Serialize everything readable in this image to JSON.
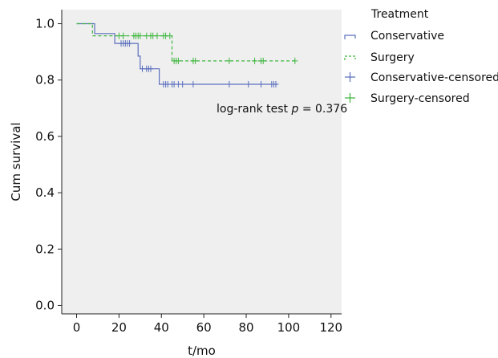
{
  "chart_data": {
    "type": "line",
    "chart_style": "kaplan-meier step survival plot",
    "xlabel": "t/mo",
    "ylabel": "Cum survival",
    "xlim": [
      -7,
      125
    ],
    "ylim": [
      -0.03,
      1.05
    ],
    "x_ticks": [
      0,
      20,
      40,
      60,
      80,
      100,
      120
    ],
    "y_ticks": [
      0.0,
      0.2,
      0.4,
      0.6,
      0.8,
      1.0
    ],
    "y_tick_labels": [
      "0.0",
      "0.2",
      "0.4",
      "0.6",
      "0.8",
      "1.0"
    ],
    "grid": false,
    "plot_background": "#efefef",
    "legend": {
      "title": "Treatment",
      "placement": "outside-right",
      "entries": [
        "Conservative",
        "Surgery",
        "Conservative-censored",
        "Surgery-censored"
      ]
    },
    "annotation": {
      "prefix": "log-rank test ",
      "symbol": "p",
      "suffix": " = 0.376",
      "x": 66,
      "y": 0.685
    },
    "series": [
      {
        "name": "Conservative",
        "color": "#5b6fbd",
        "style": "solid",
        "steps": [
          [
            0,
            1.0
          ],
          [
            8.5,
            1.0
          ],
          [
            8.5,
            0.965
          ],
          [
            18,
            0.965
          ],
          [
            18,
            0.93
          ],
          [
            29,
            0.93
          ],
          [
            29,
            0.885
          ],
          [
            30,
            0.885
          ],
          [
            30,
            0.84
          ],
          [
            39,
            0.84
          ],
          [
            39,
            0.785
          ],
          [
            95,
            0.785
          ]
        ]
      },
      {
        "name": "Surgery",
        "color": "#3db53d",
        "style": "dashed",
        "steps": [
          [
            0,
            1.0
          ],
          [
            7.5,
            1.0
          ],
          [
            7.5,
            0.957
          ],
          [
            45,
            0.957
          ],
          [
            45,
            0.868
          ],
          [
            103,
            0.868
          ]
        ]
      },
      {
        "name": "Conservative-censored",
        "color": "#5b6fbd",
        "marker": "plus",
        "points": [
          [
            21,
            0.93
          ],
          [
            22,
            0.93
          ],
          [
            23,
            0.93
          ],
          [
            24,
            0.93
          ],
          [
            25,
            0.93
          ],
          [
            31,
            0.84
          ],
          [
            33,
            0.84
          ],
          [
            34,
            0.84
          ],
          [
            35,
            0.84
          ],
          [
            41,
            0.785
          ],
          [
            42,
            0.785
          ],
          [
            43,
            0.785
          ],
          [
            45,
            0.785
          ],
          [
            46,
            0.785
          ],
          [
            48,
            0.785
          ],
          [
            50,
            0.785
          ],
          [
            55,
            0.785
          ],
          [
            72,
            0.785
          ],
          [
            81,
            0.785
          ],
          [
            87,
            0.785
          ],
          [
            92,
            0.785
          ],
          [
            93,
            0.785
          ],
          [
            94,
            0.785
          ]
        ]
      },
      {
        "name": "Surgery-censored",
        "color": "#3db53d",
        "marker": "plus",
        "points": [
          [
            20,
            0.957
          ],
          [
            22,
            0.957
          ],
          [
            27,
            0.957
          ],
          [
            28,
            0.957
          ],
          [
            29,
            0.957
          ],
          [
            30,
            0.957
          ],
          [
            33,
            0.957
          ],
          [
            35,
            0.957
          ],
          [
            36,
            0.957
          ],
          [
            38,
            0.957
          ],
          [
            41,
            0.957
          ],
          [
            42,
            0.957
          ],
          [
            44,
            0.957
          ],
          [
            46,
            0.868
          ],
          [
            47,
            0.868
          ],
          [
            48,
            0.868
          ],
          [
            55,
            0.868
          ],
          [
            56,
            0.868
          ],
          [
            72,
            0.868
          ],
          [
            84,
            0.868
          ],
          [
            87,
            0.868
          ],
          [
            88,
            0.868
          ],
          [
            103,
            0.868
          ]
        ]
      }
    ]
  }
}
